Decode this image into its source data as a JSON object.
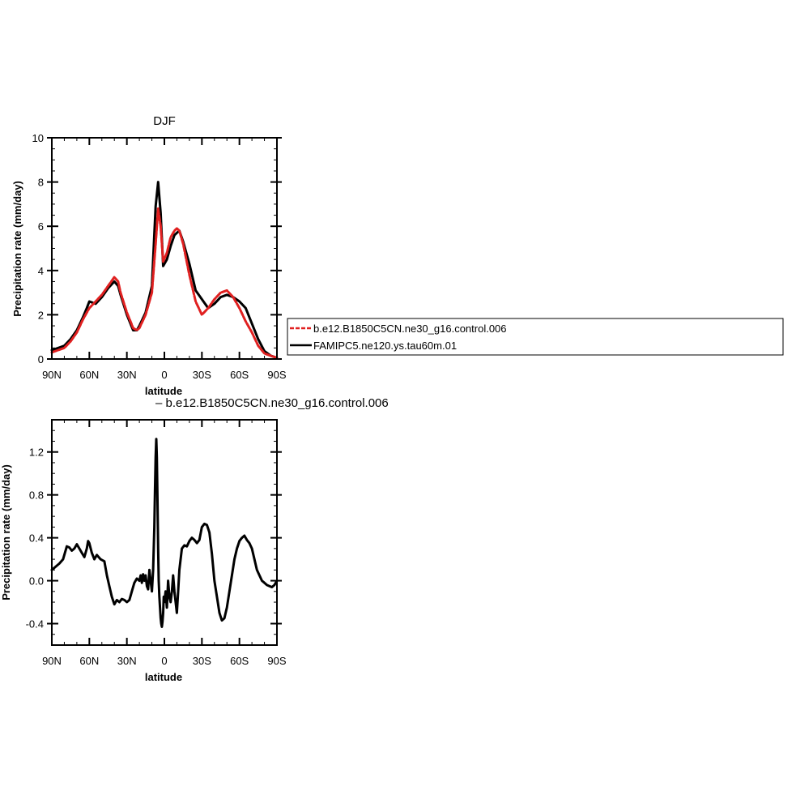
{
  "chart_data": [
    {
      "type": "line",
      "title": "DJF",
      "xlabel": "latitude",
      "ylabel": "Precipitation rate (mm/day)",
      "xlim": [
        90,
        -90
      ],
      "ylim": [
        0,
        10
      ],
      "xticks": [
        90,
        60,
        30,
        0,
        -30,
        -60,
        -90
      ],
      "xtick_labels": [
        "90N",
        "60N",
        "30N",
        "0",
        "30S",
        "60S",
        "90S"
      ],
      "yticks": [
        0,
        2,
        4,
        6,
        8,
        10
      ],
      "ytick_labels": [
        "0",
        "2",
        "4",
        "6",
        "8",
        "10"
      ],
      "grid": false,
      "legend": "right, outside plot",
      "series": [
        {
          "name": "b.e12.B1850C5CN.ne30_g16.control.006",
          "color": "#e02020",
          "x": [
            90,
            85,
            80,
            75,
            70,
            65,
            62,
            60,
            55,
            50,
            45,
            40,
            37,
            35,
            30,
            25,
            22,
            20,
            15,
            10,
            7,
            5,
            3,
            1,
            -2,
            -5,
            -8,
            -10,
            -12,
            -15,
            -20,
            -25,
            -30,
            -35,
            -40,
            -45,
            -50,
            -55,
            -60,
            -65,
            -70,
            -75,
            -80,
            -85,
            -90
          ],
          "y": [
            0.3,
            0.4,
            0.5,
            0.8,
            1.2,
            1.8,
            2.1,
            2.3,
            2.6,
            2.9,
            3.3,
            3.7,
            3.5,
            3.0,
            2.1,
            1.4,
            1.3,
            1.4,
            2.0,
            3.0,
            5.2,
            6.8,
            6.0,
            4.4,
            4.8,
            5.5,
            5.8,
            5.9,
            5.8,
            5.2,
            3.8,
            2.6,
            2.0,
            2.3,
            2.7,
            3.0,
            3.1,
            2.8,
            2.3,
            1.7,
            1.2,
            0.6,
            0.25,
            0.15,
            0.05
          ]
        },
        {
          "name": "FAMIPC5.ne120.ys.tau60m.01",
          "color": "#000000",
          "x": [
            90,
            85,
            80,
            75,
            70,
            65,
            62,
            60,
            55,
            50,
            45,
            40,
            37,
            35,
            30,
            25,
            22,
            20,
            15,
            10,
            7,
            5,
            3,
            1,
            -2,
            -5,
            -8,
            -10,
            -12,
            -15,
            -20,
            -25,
            -30,
            -35,
            -40,
            -45,
            -50,
            -55,
            -60,
            -65,
            -70,
            -75,
            -80,
            -85,
            -90
          ],
          "y": [
            0.4,
            0.5,
            0.6,
            0.9,
            1.3,
            1.9,
            2.3,
            2.6,
            2.5,
            2.8,
            3.2,
            3.5,
            3.3,
            2.9,
            2.0,
            1.3,
            1.3,
            1.5,
            2.1,
            3.3,
            6.9,
            8.0,
            6.6,
            4.2,
            4.5,
            5.1,
            5.6,
            5.7,
            5.8,
            5.3,
            4.3,
            3.1,
            2.7,
            2.3,
            2.5,
            2.8,
            2.9,
            2.8,
            2.6,
            2.3,
            1.6,
            0.9,
            0.35,
            0.15,
            0.05
          ]
        }
      ]
    },
    {
      "type": "line",
      "title": "– b.e12.B1850C5CN.ne30_g16.control.006",
      "xlabel": "latitude",
      "ylabel": "Precipitation rate (mm/day)",
      "xlim": [
        90,
        -90
      ],
      "ylim": [
        -0.6,
        1.5
      ],
      "xticks": [
        90,
        60,
        30,
        0,
        -30,
        -60,
        -90
      ],
      "xtick_labels": [
        "90N",
        "60N",
        "30N",
        "0",
        "30S",
        "60S",
        "90S"
      ],
      "yticks": [
        -0.4,
        0.0,
        0.4,
        0.8,
        1.2
      ],
      "ytick_labels": [
        "-0.4",
        "0.0",
        "0.4",
        "0.8",
        "1.2"
      ],
      "grid": false,
      "series": [
        {
          "color": "#000000",
          "x": [
            90,
            87,
            84,
            81,
            78,
            76,
            74,
            72,
            70,
            68,
            66,
            64,
            62,
            61,
            60,
            58,
            56,
            54,
            51,
            48,
            46,
            44,
            42,
            40,
            38,
            36,
            34,
            32,
            30,
            28,
            26,
            24,
            22,
            20,
            19,
            18,
            17,
            16,
            15,
            14,
            13,
            12,
            11,
            10,
            9,
            8,
            7.5,
            7,
            6.5,
            6,
            5.5,
            5,
            4.5,
            4,
            3.5,
            3,
            2.5,
            2,
            1.5,
            1,
            0.5,
            0,
            -1,
            -2,
            -3,
            -4,
            -5,
            -6,
            -7,
            -8,
            -9,
            -10,
            -11,
            -12,
            -14,
            -16,
            -18,
            -20,
            -22,
            -24,
            -26,
            -28,
            -30,
            -32,
            -34,
            -36,
            -38,
            -40,
            -42,
            -44,
            -46,
            -48,
            -50,
            -52,
            -54,
            -56,
            -58,
            -60,
            -62,
            -64,
            -66,
            -68,
            -70,
            -72,
            -74,
            -76,
            -78,
            -80,
            -82,
            -84,
            -86,
            -88,
            -90
          ],
          "y": [
            0.1,
            0.13,
            0.16,
            0.2,
            0.32,
            0.31,
            0.28,
            0.3,
            0.34,
            0.3,
            0.26,
            0.22,
            0.3,
            0.37,
            0.35,
            0.26,
            0.2,
            0.24,
            0.2,
            0.18,
            0.05,
            -0.05,
            -0.15,
            -0.22,
            -0.18,
            -0.2,
            -0.17,
            -0.18,
            -0.2,
            -0.18,
            -0.1,
            -0.02,
            0.02,
            0.0,
            0.05,
            -0.02,
            0.06,
            0.0,
            0.05,
            -0.05,
            -0.08,
            0.1,
            0.0,
            -0.1,
            0.1,
            0.5,
            0.85,
            1.15,
            1.32,
            1.15,
            0.75,
            0.3,
            0.0,
            -0.15,
            -0.25,
            -0.35,
            -0.4,
            -0.43,
            -0.38,
            -0.3,
            -0.15,
            -0.2,
            -0.1,
            -0.25,
            0.0,
            -0.15,
            -0.2,
            -0.1,
            0.05,
            -0.1,
            -0.2,
            -0.3,
            -0.1,
            0.1,
            0.3,
            0.33,
            0.32,
            0.37,
            0.4,
            0.38,
            0.35,
            0.38,
            0.5,
            0.53,
            0.52,
            0.45,
            0.25,
            0.0,
            -0.15,
            -0.3,
            -0.37,
            -0.35,
            -0.25,
            -0.1,
            0.05,
            0.2,
            0.3,
            0.37,
            0.4,
            0.42,
            0.38,
            0.35,
            0.3,
            0.2,
            0.1,
            0.05,
            0.0,
            -0.02,
            -0.04,
            -0.05,
            -0.06,
            -0.04,
            0.0
          ]
        }
      ]
    }
  ],
  "legend": {
    "items": [
      {
        "label": "b.e12.B1850C5CN.ne30_g16.control.006",
        "color": "#e02020"
      },
      {
        "label": "FAMIPC5.ne120.ys.tau60m.01",
        "color": "#000000"
      }
    ]
  }
}
